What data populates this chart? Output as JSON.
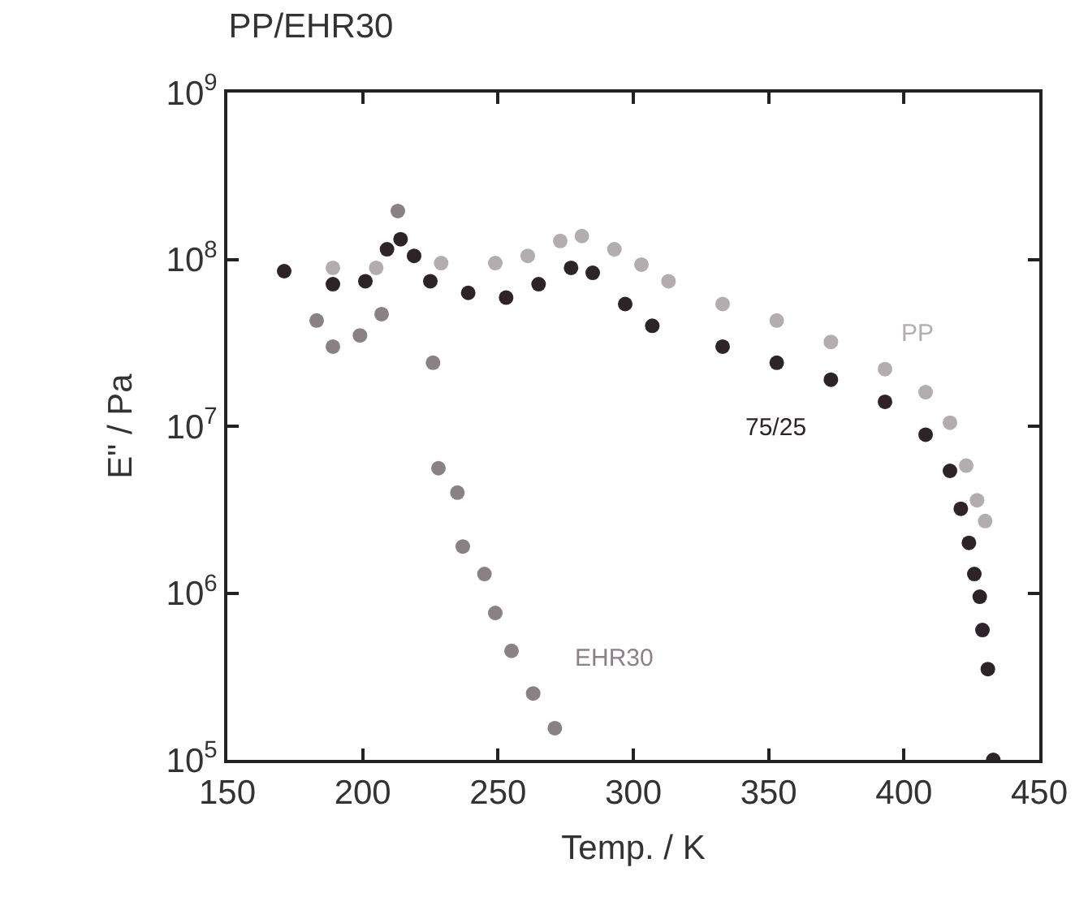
{
  "chart_data": {
    "type": "scatter",
    "title": "PP/EHR30",
    "xlabel": "Temp. / K",
    "ylabel": "E\" / Pa",
    "log": "y",
    "legend": false,
    "marker": "circle",
    "xlim": [
      150,
      450
    ],
    "xticks": [
      150,
      200,
      250,
      300,
      350,
      400,
      450
    ],
    "ylim": [
      100000,
      1000000000
    ],
    "yticks": [
      {
        "value": 100000,
        "label": "10$^{5}$"
      },
      {
        "value": 1000000,
        "label": "10$^{6}$"
      },
      {
        "value": 10000000,
        "label": "10$^{7}$"
      },
      {
        "value": 100000000,
        "label": "10$^{8}$"
      },
      {
        "value": 1000000000,
        "label": "10$^{9}$"
      }
    ],
    "series": [
      {
        "name": "PP",
        "color": "#b3adb0",
        "x": [
          189,
          205,
          229,
          249,
          261,
          273,
          281,
          293,
          303,
          313,
          333,
          353,
          373,
          393,
          408,
          417,
          423,
          427,
          430
        ],
        "values": [
          89000000,
          89000000,
          95000000,
          95000000,
          105000000,
          129000000,
          138000000,
          115000000,
          93000000,
          74000000,
          54000000,
          43000000,
          32000000,
          22000000,
          16000000,
          10500000,
          5800000,
          3600000,
          2700000
        ]
      },
      {
        "name": "75/25",
        "color": "#2e2329",
        "x": [
          171,
          189,
          201,
          209,
          214,
          219,
          225,
          239,
          253,
          265,
          277,
          285,
          297,
          307,
          333,
          353,
          373,
          393,
          408,
          417,
          421,
          424,
          426,
          428,
          429,
          431,
          433
        ],
        "values": [
          85000000,
          71000000,
          74000000,
          115000000,
          132000000,
          105000000,
          74000000,
          63000000,
          59000000,
          71000000,
          89000000,
          83000000,
          54000000,
          40000000,
          30000000,
          24000000,
          19000000,
          14000000,
          8900000,
          5400000,
          3200000,
          2000000,
          1300000,
          950000,
          600000,
          350000,
          100000
        ]
      },
      {
        "name": "EHR30",
        "color": "#8a8086",
        "x": [
          183,
          189,
          199,
          207,
          213,
          226,
          228,
          235,
          237,
          245,
          249,
          255,
          263,
          271
        ],
        "values": [
          43000000,
          30000000,
          35000000,
          47000000,
          195000000,
          24000000,
          5600000,
          4000000,
          1900000,
          1300000,
          760000,
          450000,
          250000,
          155000
        ]
      }
    ]
  }
}
